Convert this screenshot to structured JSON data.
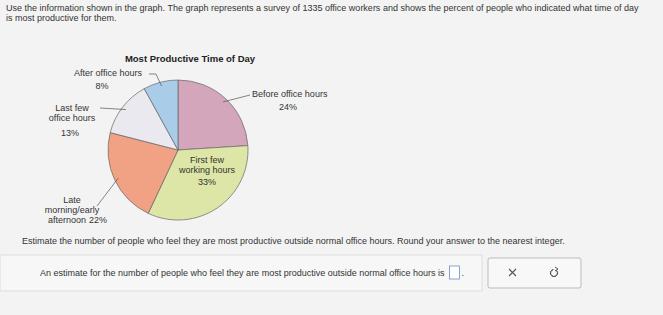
{
  "chart_data": {
    "type": "pie",
    "title": "Most Productive Time of Day",
    "categories": [
      "Before office hours",
      "First few working hours",
      "Late morning/early afternoon",
      "Last few office hours",
      "After office hours"
    ],
    "values": [
      24,
      33,
      22,
      13,
      8
    ],
    "value_labels": [
      "24%",
      "33%",
      "22%",
      "13%",
      "8%"
    ],
    "colors": [
      "#d3a6bb",
      "#dde6a6",
      "#f1a184",
      "#e9e9ef",
      "#a9cde8"
    ],
    "data_labels": true
  },
  "problem": {
    "intro": [
      "Use the information shown in the graph. The graph represents a survey of 1335 office workers and shows the percent of people who indicated what time of day",
      "is most productive for them."
    ],
    "question": "Estimate the number of people who feel they are most productive outside normal office hours. Round your answer to the nearest integer.",
    "answer_prompt": "An estimate for the number of people who feel they are most productive outside normal office hours is",
    "answer_end": "."
  }
}
